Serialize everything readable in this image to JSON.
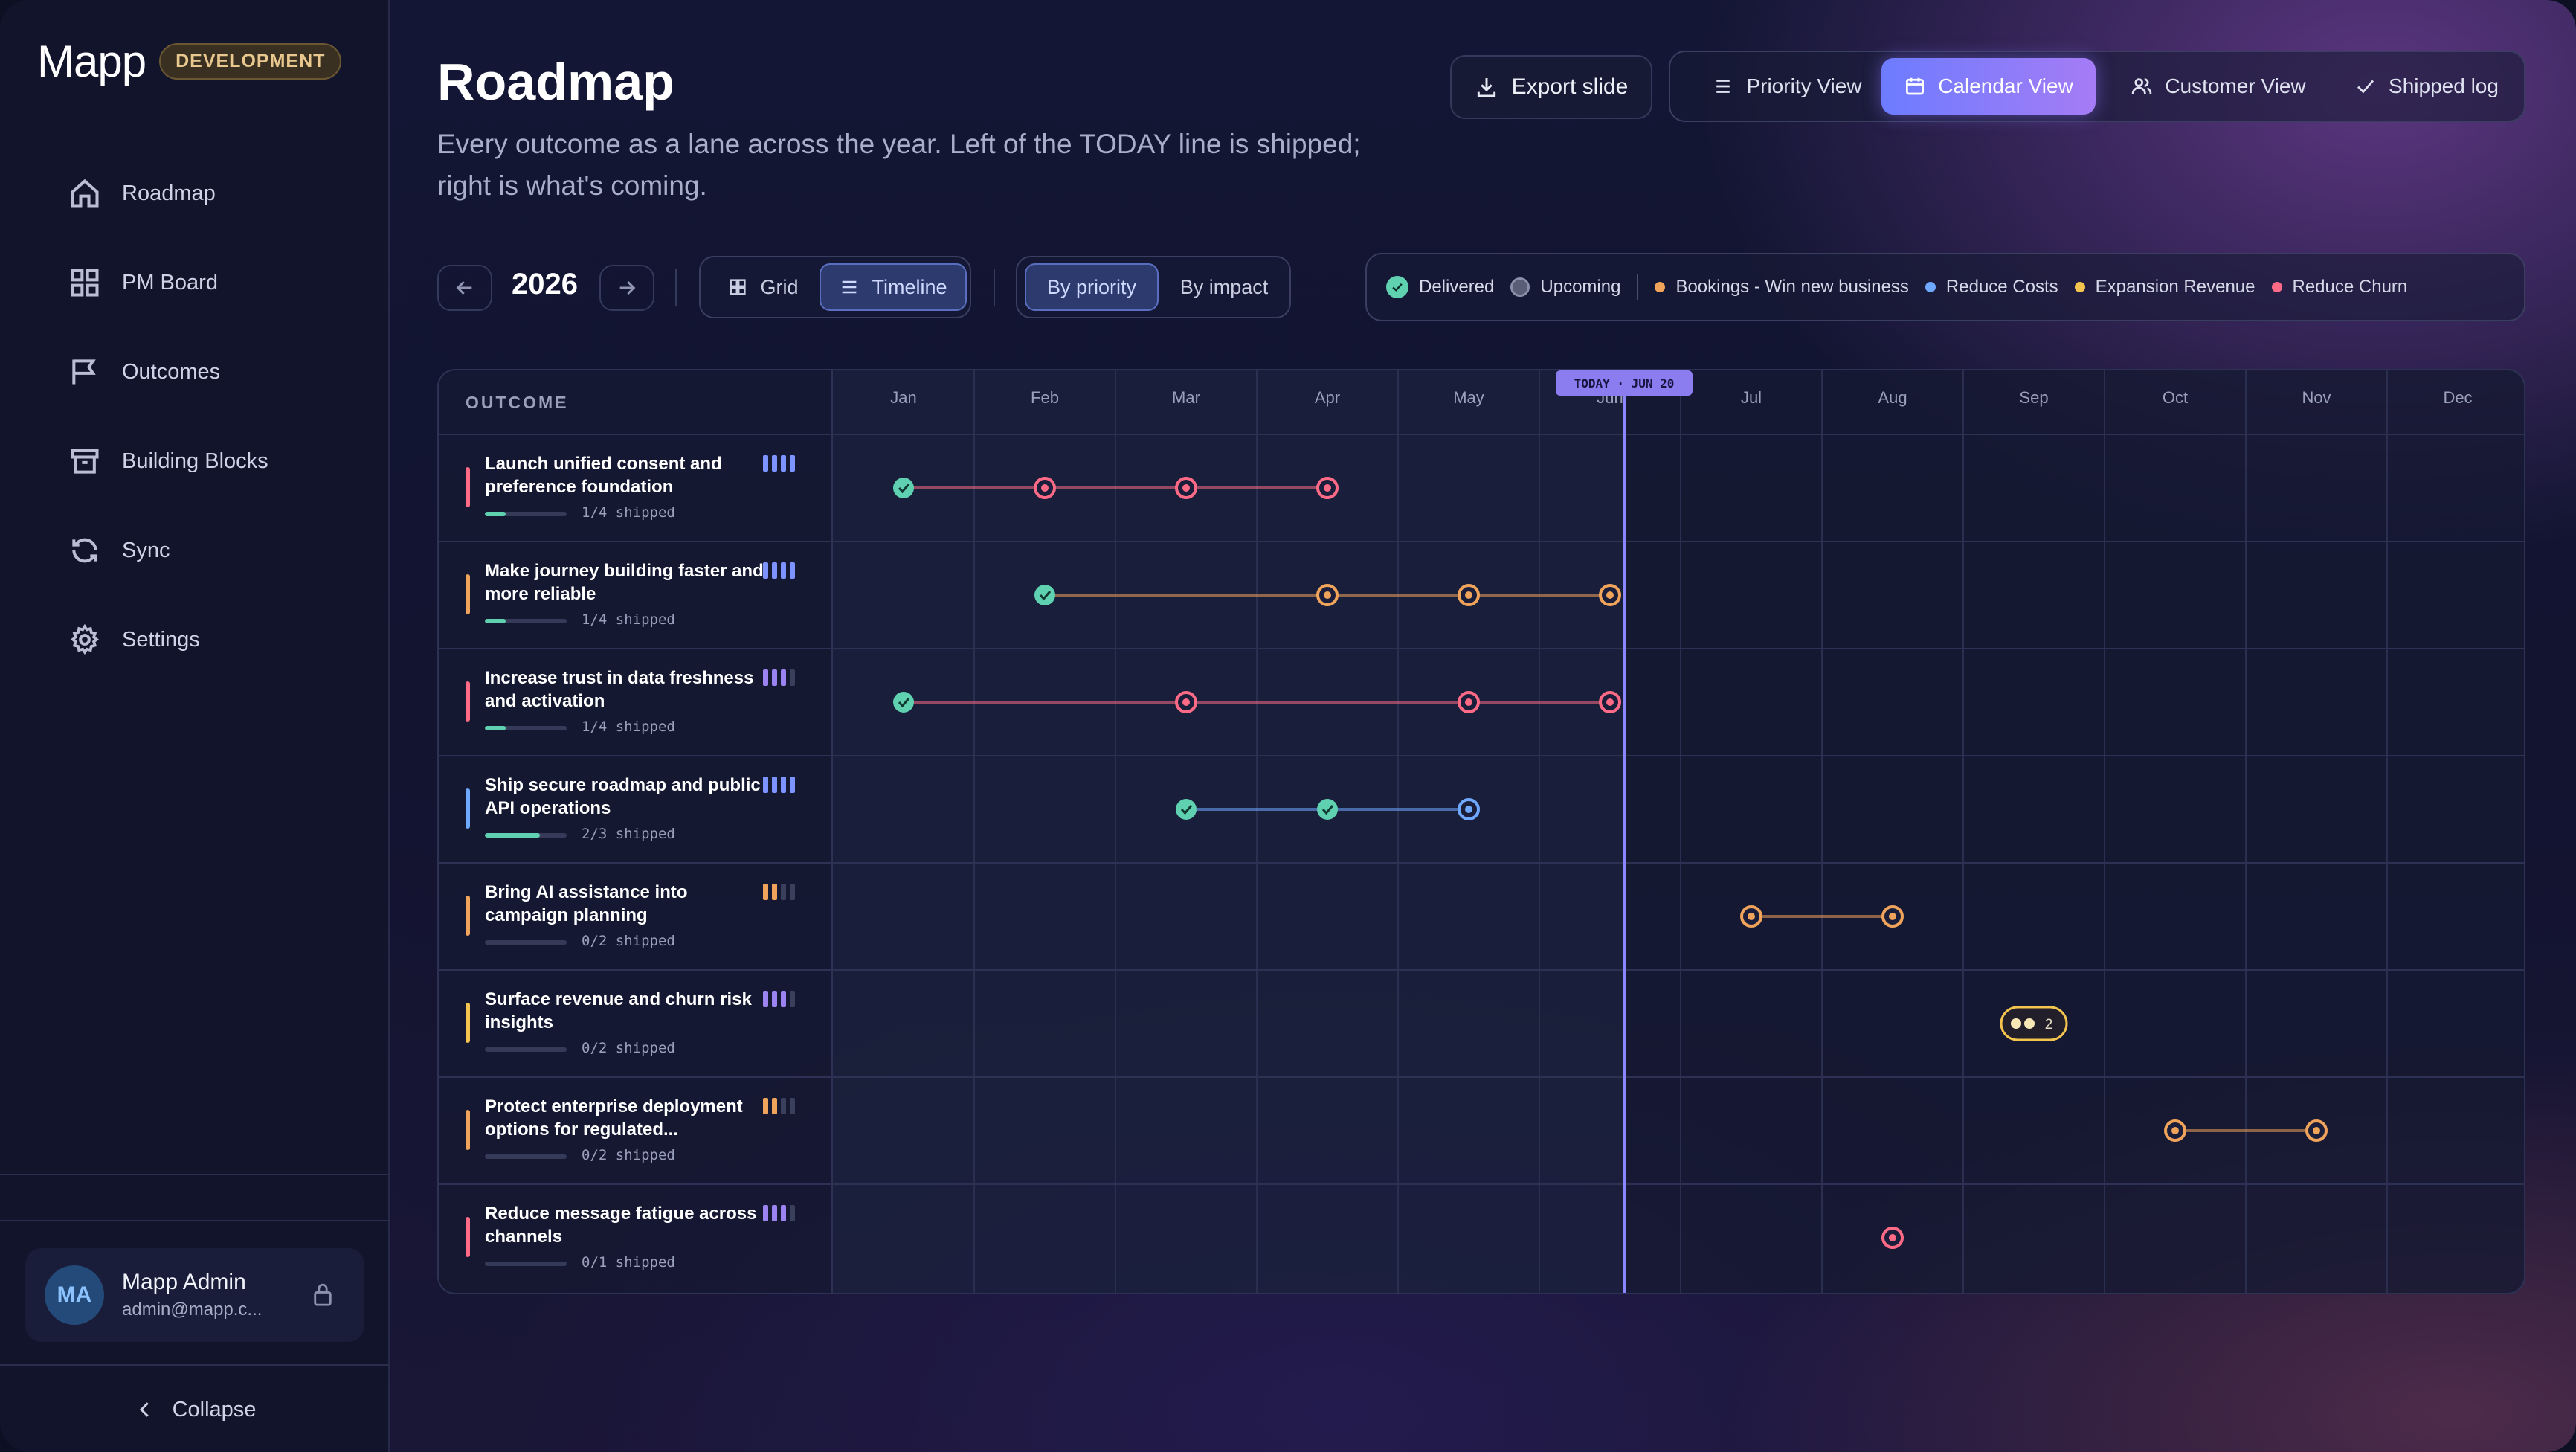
{
  "app": {
    "logo": "Mapp",
    "env_badge": "DEVELOPMENT"
  },
  "sidebar": {
    "items": [
      {
        "label": "Roadmap",
        "icon": "home-icon"
      },
      {
        "label": "PM Board",
        "icon": "board-icon"
      },
      {
        "label": "Outcomes",
        "icon": "flag-icon"
      },
      {
        "label": "Building Blocks",
        "icon": "archive-icon"
      },
      {
        "label": "Sync",
        "icon": "sync-icon"
      },
      {
        "label": "Settings",
        "icon": "gear-icon"
      }
    ],
    "user": {
      "initials": "MA",
      "name": "Mapp Admin",
      "email": "admin@mapp.c..."
    },
    "collapse_label": "Collapse"
  },
  "header": {
    "title": "Roadmap",
    "subtitle": "Every outcome as a lane across the year. Left of the TODAY line is shipped; right is what's coming.",
    "export_label": "Export slide",
    "views": [
      {
        "label": "Priority View",
        "active": false
      },
      {
        "label": "Calendar View",
        "active": true
      },
      {
        "label": "Customer View",
        "active": false
      },
      {
        "label": "Shipped log",
        "active": false
      }
    ]
  },
  "toolbar": {
    "year": "2026",
    "layout_grid": "Grid",
    "layout_timeline": "Timeline",
    "sort_priority": "By priority",
    "sort_impact": "By impact"
  },
  "legend": {
    "delivered": "Delivered",
    "upcoming": "Upcoming",
    "goals": [
      {
        "label": "Bookings - Win new business",
        "color": "#f0a35a"
      },
      {
        "label": "Reduce Costs",
        "color": "#6fa8ff"
      },
      {
        "label": "Expansion Revenue",
        "color": "#f3c54f"
      },
      {
        "label": "Reduce Churn",
        "color": "#ff6b86"
      }
    ]
  },
  "timeline": {
    "outcome_header": "OUTCOME",
    "months": [
      "Jan",
      "Feb",
      "Mar",
      "Apr",
      "May",
      "Jun",
      "Jul",
      "Aug",
      "Sep",
      "Oct",
      "Nov",
      "Dec"
    ],
    "today_label": "TODAY · JUN 20",
    "today_month_index": 5.6,
    "colors": {
      "delivered": "#5fd0b0",
      "churn": "#ff6b86",
      "bookings": "#f0a35a",
      "costs": "#6fa8ff",
      "expansion": "#f3c54f"
    },
    "rows": [
      {
        "title": "Launch unified consent and preference foundation",
        "color": "#ff6b86",
        "shipped_text": "1/4 shipped",
        "progress": 0.25,
        "priority": 4,
        "prio_color": "#7d93ff",
        "milestones": [
          {
            "m": 0,
            "status": "delivered"
          },
          {
            "m": 1,
            "status": "upcoming"
          },
          {
            "m": 2,
            "status": "upcoming"
          },
          {
            "m": 3,
            "status": "upcoming"
          }
        ]
      },
      {
        "title": "Make journey building faster and more reliable",
        "color": "#f0a35a",
        "shipped_text": "1/4 shipped",
        "progress": 0.25,
        "priority": 4,
        "prio_color": "#7d93ff",
        "milestones": [
          {
            "m": 1,
            "status": "delivered"
          },
          {
            "m": 3,
            "status": "upcoming"
          },
          {
            "m": 4,
            "status": "upcoming"
          },
          {
            "m": 5,
            "status": "upcoming"
          }
        ]
      },
      {
        "title": "Increase trust in data freshness and activation",
        "color": "#ff6b86",
        "shipped_text": "1/4 shipped",
        "progress": 0.25,
        "priority": 3,
        "prio_color": "#9b83f2",
        "milestones": [
          {
            "m": 0,
            "status": "delivered"
          },
          {
            "m": 2,
            "status": "upcoming"
          },
          {
            "m": 4,
            "status": "upcoming"
          },
          {
            "m": 5,
            "status": "upcoming"
          }
        ]
      },
      {
        "title": "Ship secure roadmap and public API operations",
        "color": "#6fa8ff",
        "shipped_text": "2/3 shipped",
        "progress": 0.67,
        "priority": 4,
        "prio_color": "#7d93ff",
        "milestones": [
          {
            "m": 2,
            "status": "delivered"
          },
          {
            "m": 3,
            "status": "delivered"
          },
          {
            "m": 4,
            "status": "upcoming"
          }
        ]
      },
      {
        "title": "Bring AI assistance into campaign planning",
        "color": "#f0a35a",
        "shipped_text": "0/2 shipped",
        "progress": 0,
        "priority": 2,
        "prio_color": "#f0a35a",
        "milestones": [
          {
            "m": 6,
            "status": "upcoming"
          },
          {
            "m": 7,
            "status": "upcoming"
          }
        ]
      },
      {
        "title": "Surface revenue and churn risk insights",
        "color": "#f3c54f",
        "shipped_text": "0/2 shipped",
        "progress": 0,
        "priority": 3,
        "prio_color": "#9b83f2",
        "cluster": {
          "m": 8,
          "count": "2"
        },
        "milestones": []
      },
      {
        "title": "Protect enterprise deployment options for regulated...",
        "color": "#f0a35a",
        "shipped_text": "0/2 shipped",
        "progress": 0,
        "priority": 2,
        "prio_color": "#f0a35a",
        "milestones": [
          {
            "m": 9,
            "status": "upcoming"
          },
          {
            "m": 10,
            "status": "upcoming"
          }
        ]
      },
      {
        "title": "Reduce message fatigue across channels",
        "color": "#ff6b86",
        "shipped_text": "0/1 shipped",
        "progress": 0,
        "priority": 3,
        "prio_color": "#9b83f2",
        "milestones": [
          {
            "m": 7,
            "status": "upcoming"
          }
        ]
      }
    ]
  }
}
